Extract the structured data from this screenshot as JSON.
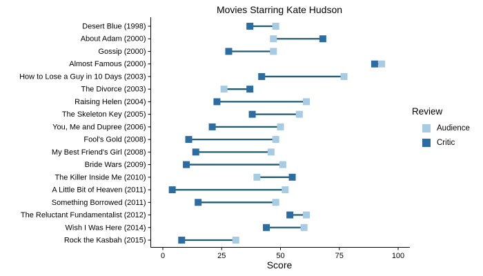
{
  "figure": {
    "title": "Movies Starring Kate Hudson",
    "xlabel": "Score"
  },
  "legend": {
    "title": "Review",
    "items": [
      {
        "label": "Audience",
        "color": "#a6cbe2"
      },
      {
        "label": "Critic",
        "color": "#2b6ca3"
      }
    ]
  },
  "colors": {
    "audience": "#a6cbe2",
    "critic": "#2b6ca3",
    "connector": "#1f5b73",
    "axis": "#000000"
  },
  "chart_data": {
    "type": "dumbbell",
    "title": "Movies Starring Kate Hudson",
    "xlabel": "Score",
    "ylabel": "",
    "xlim": [
      0,
      100
    ],
    "xticks": [
      0,
      25,
      50,
      75,
      100
    ],
    "grid": false,
    "legend_position": "right",
    "series_names": [
      "Audience",
      "Critic"
    ],
    "movies": [
      {
        "title": "Desert Blue (1998)",
        "critic": 37,
        "audience": 48
      },
      {
        "title": "About Adam (2000)",
        "critic": 68,
        "audience": 47
      },
      {
        "title": "Gossip (2000)",
        "critic": 28,
        "audience": 47
      },
      {
        "title": "Almost Famous (2000)",
        "critic": 90,
        "audience": 93
      },
      {
        "title": "How to Lose a Guy in 10 Days (2003)",
        "critic": 42,
        "audience": 77
      },
      {
        "title": "The Divorce (2003)",
        "critic": 37,
        "audience": 26
      },
      {
        "title": "Raising Helen (2004)",
        "critic": 23,
        "audience": 61
      },
      {
        "title": "The Skeleton Key (2005)",
        "critic": 38,
        "audience": 58
      },
      {
        "title": "You, Me and Dupree (2006)",
        "critic": 21,
        "audience": 50
      },
      {
        "title": "Fool's Gold (2008)",
        "critic": 11,
        "audience": 48
      },
      {
        "title": "My Best Friend's Girl (2008)",
        "critic": 14,
        "audience": 46
      },
      {
        "title": "Bride Wars (2009)",
        "critic": 10,
        "audience": 51
      },
      {
        "title": "The Killer Inside Me (2010)",
        "critic": 55,
        "audience": 40
      },
      {
        "title": "A Little Bit of Heaven (2011)",
        "critic": 4,
        "audience": 52
      },
      {
        "title": "Something Borrowed (2011)",
        "critic": 15,
        "audience": 48
      },
      {
        "title": "The Reluctant Fundamentalist (2012)",
        "critic": 54,
        "audience": 61
      },
      {
        "title": "Wish I Was Here (2014)",
        "critic": 44,
        "audience": 60
      },
      {
        "title": "Rock the Kasbah (2015)",
        "critic": 8,
        "audience": 31
      }
    ]
  }
}
